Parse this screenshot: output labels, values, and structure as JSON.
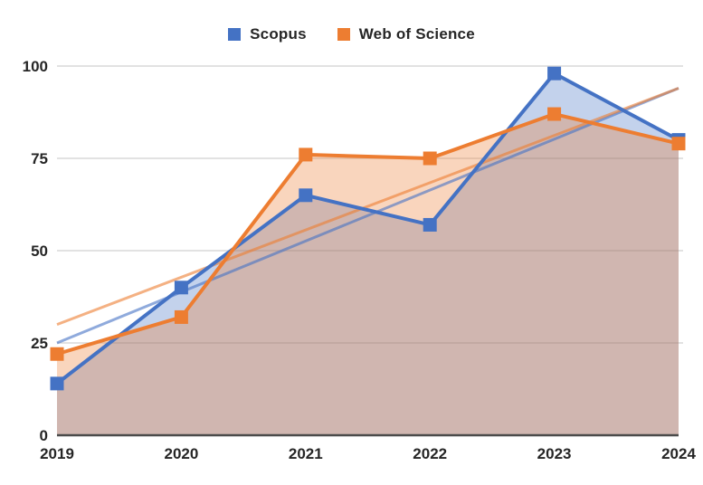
{
  "chart_data": {
    "type": "line",
    "categories": [
      "2019",
      "2020",
      "2021",
      "2022",
      "2023",
      "2024"
    ],
    "series": [
      {
        "name": "Scopus",
        "color": "#4472C4",
        "values": [
          14,
          40,
          65,
          57,
          98,
          80
        ],
        "trendline": {
          "start": 25,
          "end": 94
        }
      },
      {
        "name": "Web of Science",
        "color": "#ED7D31",
        "values": [
          22,
          32,
          76,
          75,
          87,
          79
        ],
        "trendline": {
          "start": 30,
          "end": 94
        }
      }
    ],
    "ylim": [
      0,
      100
    ],
    "yticks": [
      0,
      25,
      50,
      75,
      100
    ],
    "grid": true,
    "legend_position": "top",
    "marker": "square",
    "area_fill": true,
    "area_opacity": 0.32,
    "trend_opacity": 0.6,
    "grid_color": "#D9D9D9",
    "axis_color": "#4A4A4A",
    "text_color": "#262626",
    "background": "#FFFFFF"
  }
}
